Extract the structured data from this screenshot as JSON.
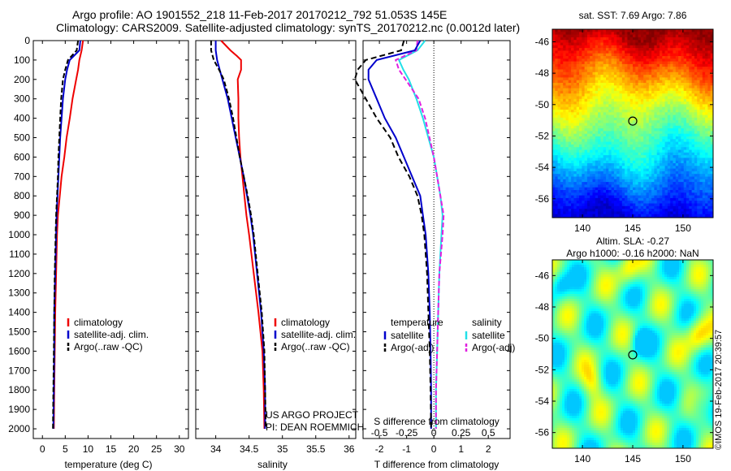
{
  "header": {
    "line1": "Argo profile: AO 1901552_218 11-Feb-2017 20170212_792 51.053S 145E",
    "line2": "Climatology: CARS2009. Satellite-adjusted climatology: synTS_20170212.nc (0.0012d later)"
  },
  "colors": {
    "clim": "#ee0000",
    "sat": "#0000cc",
    "argo": "#000000",
    "satS": "#22e0e8",
    "argoS": "#e020e0"
  },
  "credit": "©IMOS 19-Feb-2017 20:39:57",
  "chart_data": [
    {
      "type": "line",
      "xlabel": "temperature (deg C)",
      "ylabel": "",
      "xlim": [
        -2,
        32
      ],
      "ylim": [
        2050,
        0
      ],
      "xticks": [
        "0",
        "5",
        "10",
        "15",
        "20",
        "25",
        "30"
      ],
      "yticks": [
        "0",
        "100",
        "200",
        "300",
        "400",
        "500",
        "600",
        "700",
        "800",
        "900",
        "1000",
        "1100",
        "1200",
        "1300",
        "1400",
        "1500",
        "1600",
        "1700",
        "1800",
        "1900",
        "2000"
      ],
      "legend": [
        "climatology",
        "satellite-adj. clim.",
        "Argo(..raw -QC)"
      ],
      "legend_position": "bottom-right",
      "series": [
        {
          "name": "climatology",
          "depth": [
            0,
            50,
            100,
            150,
            200,
            300,
            400,
            500,
            600,
            700,
            800,
            900,
            1000,
            1200,
            1400,
            1600,
            1800,
            2000
          ],
          "values": [
            8.9,
            8.6,
            8.1,
            7.8,
            7.4,
            6.6,
            6.0,
            5.3,
            4.8,
            4.2,
            3.8,
            3.4,
            3.2,
            3.0,
            2.8,
            2.7,
            2.6,
            2.5
          ]
        },
        {
          "name": "satellite-adj. clim.",
          "depth": [
            0,
            50,
            100,
            150,
            200,
            300,
            400,
            500,
            600,
            700,
            800,
            900,
            1000,
            1200,
            1400,
            1600,
            1800,
            2000
          ],
          "values": [
            8.3,
            8.1,
            6.0,
            5.4,
            5.0,
            4.5,
            4.2,
            3.9,
            3.7,
            3.5,
            3.3,
            3.1,
            3.0,
            2.8,
            2.6,
            2.6,
            2.5,
            2.4
          ]
        },
        {
          "name": "Argo(..raw -QC)",
          "depth": [
            0,
            50,
            100,
            150,
            200,
            300,
            400,
            500,
            600,
            700,
            800,
            900,
            1000,
            1200,
            1400,
            1600,
            1800,
            2000
          ],
          "values": [
            7.8,
            7.5,
            5.6,
            5.0,
            4.5,
            4.1,
            3.9,
            3.7,
            3.5,
            3.4,
            3.2,
            3.0,
            2.9,
            2.7,
            2.6,
            2.5,
            2.4,
            2.3
          ]
        }
      ]
    },
    {
      "type": "line",
      "xlabel": "salinity",
      "xlim": [
        33.7,
        36.1
      ],
      "ylim": [
        2050,
        0
      ],
      "xticks": [
        "34",
        "34.5",
        "35",
        "35.5",
        "36"
      ],
      "legend": [
        "climatology",
        "satellite-adj. clim.",
        "Argo(..raw -QC)"
      ],
      "legend_position": "bottom-right",
      "annotation": [
        "US ARGO PROJECT",
        "PI: DEAN ROEMMICH"
      ],
      "series": [
        {
          "name": "climatology",
          "depth": [
            0,
            50,
            80,
            100,
            150,
            200,
            300,
            400,
            500,
            600,
            700,
            800,
            900,
            1000,
            1200,
            1400,
            1600,
            1800,
            2000
          ],
          "values": [
            34.08,
            34.22,
            34.32,
            34.38,
            34.38,
            34.33,
            34.34,
            34.34,
            34.35,
            34.37,
            34.4,
            34.43,
            34.46,
            34.5,
            34.57,
            34.64,
            34.7,
            34.72,
            34.73
          ]
        },
        {
          "name": "satellite-adj. clim.",
          "depth": [
            0,
            50,
            100,
            150,
            200,
            300,
            400,
            500,
            600,
            700,
            800,
            900,
            1000,
            1200,
            1400,
            1600,
            1800,
            2000
          ],
          "values": [
            34.0,
            34.0,
            34.02,
            34.06,
            34.1,
            34.18,
            34.24,
            34.3,
            34.36,
            34.42,
            34.47,
            34.52,
            34.56,
            34.62,
            34.68,
            34.72,
            34.74,
            34.74
          ]
        },
        {
          "name": "Argo(..raw -QC)",
          "depth": [
            0,
            50,
            100,
            150,
            200,
            300,
            400,
            500,
            600,
            700,
            800,
            900,
            1000,
            1200,
            1400,
            1600,
            1800,
            2000
          ],
          "values": [
            33.93,
            33.93,
            33.97,
            34.05,
            34.12,
            34.2,
            34.26,
            34.31,
            34.36,
            34.42,
            34.48,
            34.53,
            34.57,
            34.63,
            34.69,
            34.73,
            34.74,
            34.75
          ]
        }
      ]
    },
    {
      "type": "line",
      "xlabel": "T difference from climatology",
      "xlabel_top": "S difference from climatology",
      "xlim": [
        -2.6,
        2.8
      ],
      "xlim_S": [
        -0.65,
        0.7
      ],
      "ylim": [
        2050,
        0
      ],
      "xticks": [
        "-2",
        "-1",
        "0",
        "1",
        "2"
      ],
      "xticks_S": [
        "-0.5",
        "-0.25",
        "0",
        "0.25",
        "0.5"
      ],
      "legend_T": [
        "temperature",
        "satellite",
        "Argo(-adj)"
      ],
      "legend_S": [
        "salinity",
        "satellite",
        "Argo(-adj)"
      ],
      "legend_position": "bottom",
      "series": [
        {
          "name": "satellite",
          "variable": "temperature",
          "depth": [
            0,
            50,
            100,
            150,
            200,
            300,
            400,
            500,
            600,
            700,
            800,
            900,
            1000,
            1200,
            1400,
            1600,
            1800,
            2000
          ],
          "values": [
            -0.5,
            -0.7,
            -2.1,
            -2.4,
            -2.4,
            -2.1,
            -1.8,
            -1.4,
            -1.1,
            -0.8,
            -0.5,
            -0.4,
            -0.3,
            -0.2,
            -0.15,
            -0.12,
            -0.1,
            -0.1
          ]
        },
        {
          "name": "Argo(-adj)",
          "variable": "temperature",
          "depth": [
            0,
            50,
            100,
            150,
            200,
            300,
            400,
            500,
            600,
            700,
            800,
            900,
            1000,
            1200,
            1400,
            1600,
            1800,
            2000
          ],
          "values": [
            -1.1,
            -1.2,
            -2.5,
            -2.8,
            -2.9,
            -2.5,
            -2.1,
            -1.6,
            -1.3,
            -0.9,
            -0.6,
            -0.45,
            -0.35,
            -0.25,
            -0.2,
            -0.15,
            -0.12,
            -0.1
          ]
        },
        {
          "name": "satellite",
          "variable": "salinity",
          "depth": [
            0,
            50,
            100,
            150,
            200,
            300,
            400,
            500,
            600,
            700,
            800,
            900,
            1000,
            1200,
            1400,
            1600,
            1800,
            2000
          ],
          "values": [
            -0.08,
            -0.15,
            -0.32,
            -0.28,
            -0.23,
            -0.16,
            -0.1,
            -0.05,
            0.0,
            0.03,
            0.06,
            0.08,
            0.07,
            0.05,
            0.04,
            0.03,
            0.02,
            0.02
          ]
        },
        {
          "name": "Argo(-adj)",
          "variable": "salinity",
          "depth": [
            0,
            50,
            100,
            150,
            200,
            300,
            400,
            500,
            600,
            700,
            800,
            900,
            1000,
            1200,
            1400,
            1600,
            1800,
            2000
          ],
          "values": [
            -0.15,
            -0.16,
            -0.35,
            -0.32,
            -0.26,
            -0.14,
            -0.08,
            -0.04,
            0.0,
            0.03,
            0.06,
            0.09,
            0.08,
            0.05,
            0.04,
            0.03,
            0.02,
            0.02
          ]
        }
      ]
    },
    {
      "type": "heatmap",
      "title": "sat. SST: 7.69  Argo: 7.86",
      "xlim": [
        137,
        153
      ],
      "ylim": [
        -57.2,
        -45.2
      ],
      "xticks": [
        "140",
        "145",
        "150"
      ],
      "yticks": [
        "-46",
        "-48",
        "-50",
        "-52",
        "-54",
        "-56"
      ],
      "marker": {
        "lon": 145,
        "lat": -51.05
      },
      "colormap": "jet"
    },
    {
      "type": "heatmap",
      "title": "Altim. SLA: -0.27",
      "subtitle": "Argo h1000: -0.16 h2000: NaN",
      "xlim": [
        137,
        153
      ],
      "ylim": [
        -57,
        -45
      ],
      "xticks": [
        "140",
        "145",
        "150"
      ],
      "yticks": [
        "-46",
        "-48",
        "-50",
        "-52",
        "-54",
        "-56"
      ],
      "marker": {
        "lon": 145,
        "lat": -51.05
      },
      "colormap": "jet"
    }
  ]
}
